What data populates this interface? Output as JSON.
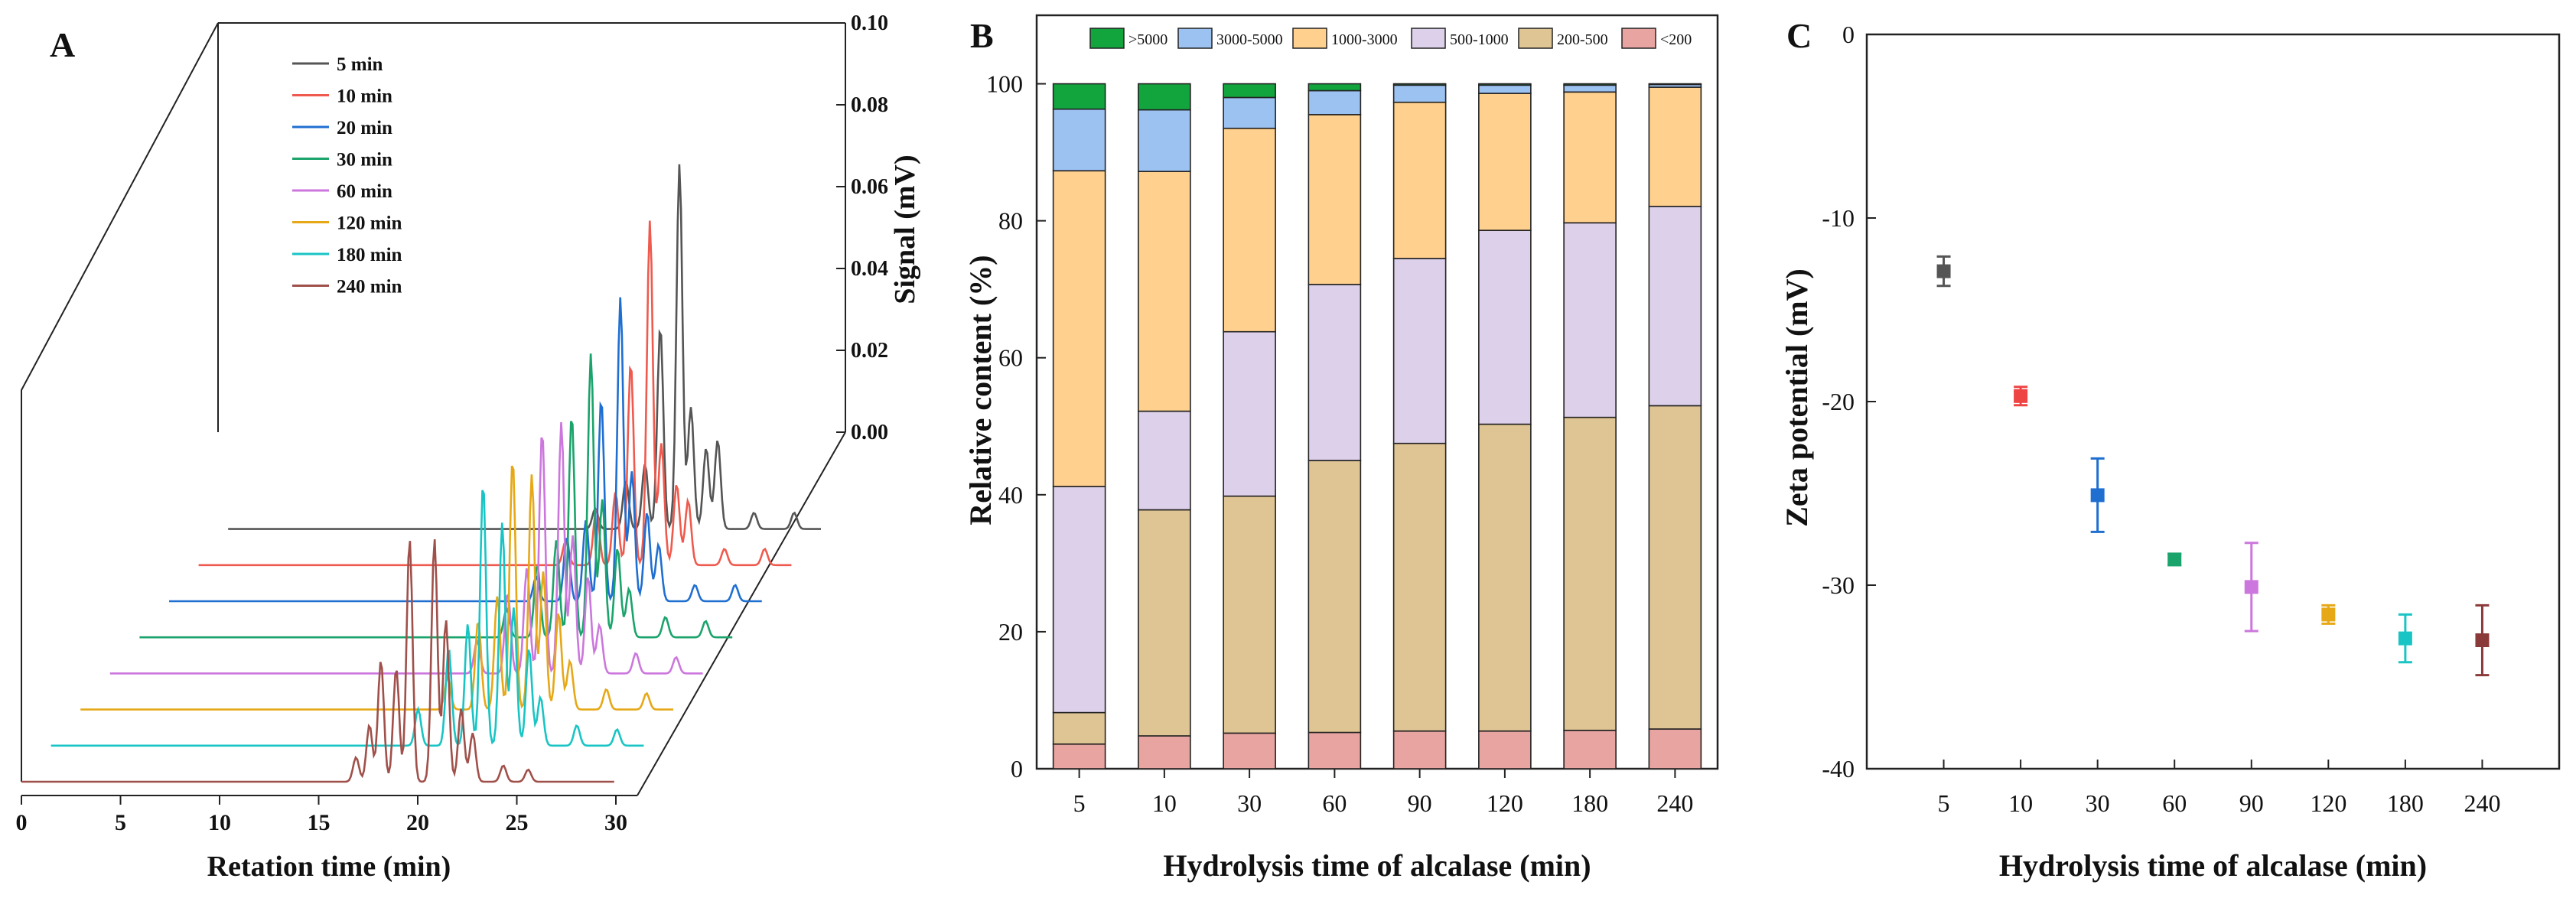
{
  "figure": {
    "panels": [
      "A",
      "B",
      "C"
    ]
  },
  "chart_data": [
    {
      "panel": "A",
      "type": "line",
      "xlabel": "Retation time (min)",
      "ylabel": "Signal (mV)",
      "xlim": [
        0,
        30
      ],
      "ylim": [
        0,
        0.1
      ],
      "xticks": [
        "0",
        "5",
        "10",
        "15",
        "20",
        "25",
        "30"
      ],
      "yticks": [
        "0.00",
        "0.02",
        "0.04",
        "0.06",
        "0.08",
        "0.10"
      ],
      "legend_position": "top-left",
      "series": [
        {
          "name": "5 min",
          "color": "#555555",
          "peaks": [
            {
              "t": 19.2,
              "h": 0.005
            },
            {
              "t": 20.8,
              "h": 0.012
            },
            {
              "t": 21.8,
              "h": 0.016
            },
            {
              "t": 22.6,
              "h": 0.05
            },
            {
              "t": 23.6,
              "h": 0.09
            },
            {
              "t": 24.2,
              "h": 0.03
            },
            {
              "t": 25.0,
              "h": 0.02
            },
            {
              "t": 25.6,
              "h": 0.022
            },
            {
              "t": 27.5,
              "h": 0.004
            },
            {
              "t": 29.6,
              "h": 0.004
            }
          ]
        },
        {
          "name": "10 min",
          "color": "#ef5a4e",
          "peaks": [
            {
              "t": 19.2,
              "h": 0.006
            },
            {
              "t": 20.8,
              "h": 0.014
            },
            {
              "t": 21.8,
              "h": 0.018
            },
            {
              "t": 22.6,
              "h": 0.05
            },
            {
              "t": 23.6,
              "h": 0.085
            },
            {
              "t": 24.2,
              "h": 0.03
            },
            {
              "t": 25.0,
              "h": 0.02
            },
            {
              "t": 25.6,
              "h": 0.016
            },
            {
              "t": 27.5,
              "h": 0.004
            },
            {
              "t": 29.6,
              "h": 0.004
            }
          ]
        },
        {
          "name": "20 min",
          "color": "#1f6fd1",
          "peaks": [
            {
              "t": 19.2,
              "h": 0.006
            },
            {
              "t": 20.8,
              "h": 0.016
            },
            {
              "t": 21.8,
              "h": 0.02
            },
            {
              "t": 22.6,
              "h": 0.05
            },
            {
              "t": 23.6,
              "h": 0.075
            },
            {
              "t": 24.2,
              "h": 0.032
            },
            {
              "t": 25.0,
              "h": 0.022
            },
            {
              "t": 25.6,
              "h": 0.014
            },
            {
              "t": 27.5,
              "h": 0.004
            },
            {
              "t": 29.6,
              "h": 0.004
            }
          ]
        },
        {
          "name": "30 min",
          "color": "#1aa36b",
          "peaks": [
            {
              "t": 19.2,
              "h": 0.007
            },
            {
              "t": 20.8,
              "h": 0.018
            },
            {
              "t": 21.8,
              "h": 0.024
            },
            {
              "t": 22.6,
              "h": 0.055
            },
            {
              "t": 23.6,
              "h": 0.07
            },
            {
              "t": 24.2,
              "h": 0.034
            },
            {
              "t": 25.0,
              "h": 0.022
            },
            {
              "t": 25.6,
              "h": 0.012
            },
            {
              "t": 27.5,
              "h": 0.005
            },
            {
              "t": 29.6,
              "h": 0.004
            }
          ]
        },
        {
          "name": "60 min",
          "color": "#cc77dd",
          "peaks": [
            {
              "t": 19.2,
              "h": 0.008
            },
            {
              "t": 20.8,
              "h": 0.02
            },
            {
              "t": 21.8,
              "h": 0.026
            },
            {
              "t": 22.6,
              "h": 0.06
            },
            {
              "t": 23.6,
              "h": 0.062
            },
            {
              "t": 24.2,
              "h": 0.034
            },
            {
              "t": 25.0,
              "h": 0.024
            },
            {
              "t": 25.6,
              "h": 0.012
            },
            {
              "t": 27.5,
              "h": 0.005
            },
            {
              "t": 29.6,
              "h": 0.004
            }
          ]
        },
        {
          "name": "120 min",
          "color": "#e6a817",
          "peaks": [
            {
              "t": 19.2,
              "h": 0.008
            },
            {
              "t": 20.8,
              "h": 0.022
            },
            {
              "t": 21.8,
              "h": 0.028
            },
            {
              "t": 22.6,
              "h": 0.062
            },
            {
              "t": 23.6,
              "h": 0.058
            },
            {
              "t": 24.2,
              "h": 0.034
            },
            {
              "t": 25.0,
              "h": 0.024
            },
            {
              "t": 25.6,
              "h": 0.012
            },
            {
              "t": 27.5,
              "h": 0.005
            },
            {
              "t": 29.6,
              "h": 0.004
            }
          ]
        },
        {
          "name": "180 min",
          "color": "#19c4c4",
          "peaks": [
            {
              "t": 19.2,
              "h": 0.009
            },
            {
              "t": 20.8,
              "h": 0.024
            },
            {
              "t": 21.8,
              "h": 0.03
            },
            {
              "t": 22.6,
              "h": 0.065
            },
            {
              "t": 23.6,
              "h": 0.055
            },
            {
              "t": 24.2,
              "h": 0.034
            },
            {
              "t": 25.0,
              "h": 0.024
            },
            {
              "t": 25.6,
              "h": 0.012
            },
            {
              "t": 27.5,
              "h": 0.005
            },
            {
              "t": 29.6,
              "h": 0.004
            }
          ]
        },
        {
          "name": "240 min",
          "color": "#a0504a",
          "peaks": [
            {
              "t": 17.5,
              "h": 0.006
            },
            {
              "t": 18.2,
              "h": 0.014
            },
            {
              "t": 18.8,
              "h": 0.03
            },
            {
              "t": 19.6,
              "h": 0.028
            },
            {
              "t": 20.3,
              "h": 0.06
            },
            {
              "t": 21.6,
              "h": 0.06
            },
            {
              "t": 22.2,
              "h": 0.04
            },
            {
              "t": 23.0,
              "h": 0.018
            },
            {
              "t": 23.6,
              "h": 0.012
            },
            {
              "t": 25.2,
              "h": 0.004
            },
            {
              "t": 26.5,
              "h": 0.003
            }
          ]
        }
      ]
    },
    {
      "panel": "B",
      "type": "bar",
      "stacked": true,
      "xlabel": "Hydrolysis time of alcalase (min)",
      "ylabel": "Relative content (%)",
      "ylim": [
        0,
        110
      ],
      "yticks": [
        "0",
        "20",
        "40",
        "60",
        "80",
        "100"
      ],
      "categories": [
        "5",
        "10",
        "30",
        "60",
        "90",
        "120",
        "180",
        "240"
      ],
      "legend_position": "top",
      "series": [
        {
          "name": "<200",
          "color": "#e8a4a1",
          "values": [
            3.6,
            4.8,
            5.2,
            5.3,
            5.5,
            5.5,
            5.6,
            5.8
          ]
        },
        {
          "name": "200-500",
          "color": "#dfc594",
          "values": [
            4.6,
            33.0,
            34.6,
            39.7,
            42.0,
            44.8,
            45.7,
            47.2
          ]
        },
        {
          "name": "500-1000",
          "color": "#ddd0ea",
          "values": [
            33.0,
            14.4,
            24.0,
            25.7,
            27.0,
            28.3,
            28.4,
            29.1
          ]
        },
        {
          "name": "1000-3000",
          "color": "#ffd08e",
          "values": [
            46.1,
            35.0,
            29.7,
            24.8,
            22.8,
            20.0,
            19.1,
            17.4
          ]
        },
        {
          "name": "3000-5000",
          "color": "#9cc2f2",
          "values": [
            9.0,
            9.0,
            4.5,
            3.5,
            2.5,
            1.2,
            1.0,
            0.4
          ]
        },
        {
          "name": ">5000",
          "color": "#12a53e",
          "values": [
            3.7,
            3.8,
            2.0,
            1.0,
            0.2,
            0.2,
            0.2,
            0.1
          ]
        }
      ]
    },
    {
      "panel": "C",
      "type": "scatter",
      "xlabel": "Hydrolysis time of alcalase (min)",
      "ylabel": "Zeta potential (mV)",
      "ylim": [
        -40,
        0
      ],
      "yticks": [
        "0",
        "-10",
        "-20",
        "-30",
        "-40"
      ],
      "categories": [
        "5",
        "10",
        "30",
        "60",
        "90",
        "120",
        "180",
        "240"
      ],
      "points": [
        {
          "x": "5",
          "y": -12.9,
          "err": 0.8,
          "color": "#555555"
        },
        {
          "x": "10",
          "y": -19.7,
          "err": 0.5,
          "color": "#ef4444"
        },
        {
          "x": "30",
          "y": -25.1,
          "err": 2.0,
          "color": "#1f6fd1"
        },
        {
          "x": "60",
          "y": -28.6,
          "err": 0.3,
          "color": "#1aa36b"
        },
        {
          "x": "90",
          "y": -30.1,
          "err": 2.4,
          "color": "#cc77dd"
        },
        {
          "x": "120",
          "y": -31.6,
          "err": 0.5,
          "color": "#e6a817"
        },
        {
          "x": "180",
          "y": -32.9,
          "err": 1.3,
          "color": "#19c4c4"
        },
        {
          "x": "240",
          "y": -33.0,
          "err": 1.9,
          "color": "#8b3a3a"
        }
      ]
    }
  ]
}
